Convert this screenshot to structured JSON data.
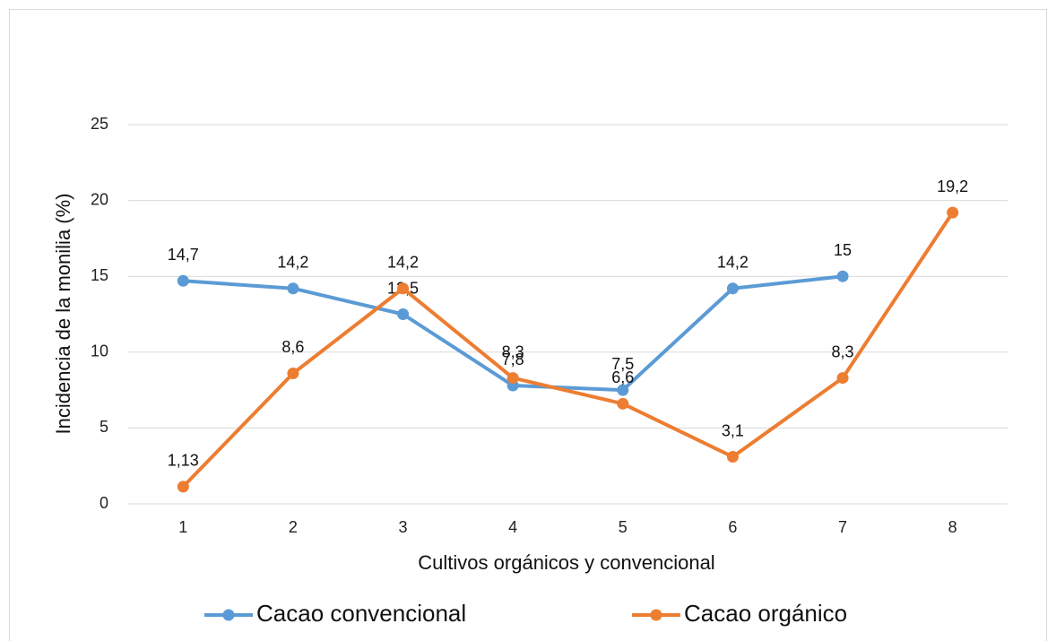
{
  "chart_data": {
    "type": "line",
    "x_label": "Cultivos orgánicos y convencional",
    "y_label": "Incidencia de la monilia (%)",
    "categories": [
      "1",
      "2",
      "3",
      "4",
      "5",
      "6",
      "7",
      "8"
    ],
    "series": [
      {
        "name": "Cacao convencional",
        "color": "#5b9bd5",
        "values": [
          14.7,
          14.2,
          12.5,
          7.8,
          7.5,
          14.2,
          15,
          null
        ],
        "value_labels": [
          "14,7",
          "14,2",
          "12,5",
          "7,8",
          "7,5",
          "14,2",
          "15",
          null
        ]
      },
      {
        "name": "Cacao orgánico",
        "color": "#ed7d31",
        "values": [
          1.13,
          8.6,
          14.2,
          8.3,
          6.6,
          3.1,
          8.3,
          19.2
        ],
        "value_labels": [
          "1,13",
          "8,6",
          "14,2",
          "8,3",
          "6,6",
          "3,1",
          "8,3",
          "19,2"
        ]
      }
    ],
    "ylim": [
      0,
      25
    ],
    "yticks": [
      0,
      5,
      10,
      15,
      20,
      25
    ],
    "grid": true,
    "legend": "bottom"
  }
}
